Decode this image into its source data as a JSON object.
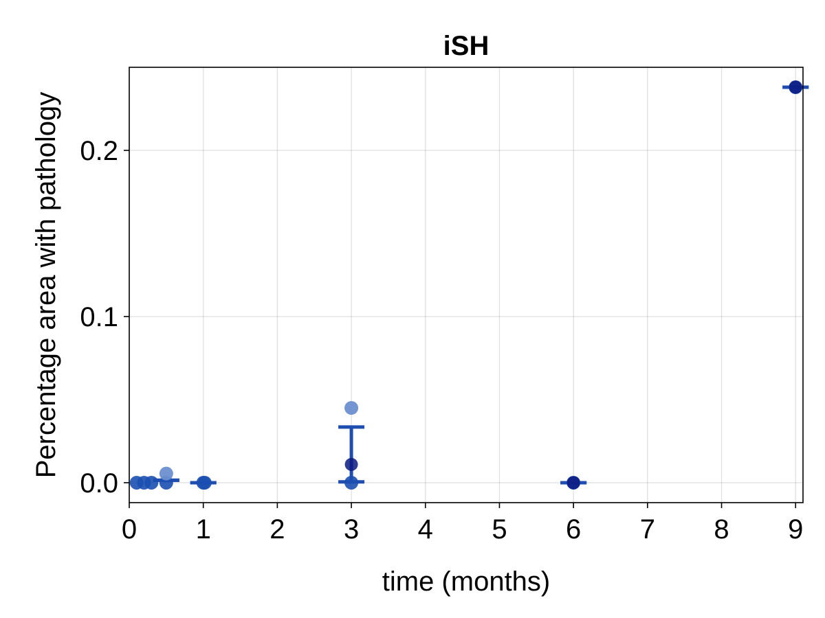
{
  "chart_data": {
    "type": "scatter",
    "title": "iSH",
    "xlabel": "time (months)",
    "ylabel": "Percentage area with pathology",
    "xlim": [
      0,
      9.1
    ],
    "ylim": [
      -0.012,
      0.25
    ],
    "xticks": [
      0,
      1,
      2,
      3,
      4,
      5,
      6,
      7,
      8,
      9
    ],
    "xtick_labels": [
      "0",
      "1",
      "2",
      "3",
      "4",
      "5",
      "6",
      "7",
      "8",
      "9"
    ],
    "yticks": [
      0.0,
      0.1,
      0.2
    ],
    "ytick_labels": [
      "0.0",
      "0.1",
      "0.2"
    ],
    "grid": true,
    "colors": {
      "points": "#1b4fb0",
      "points_light": "#6b8fd0",
      "mean": "#0b1a80",
      "errorbar": "#1f4eb0"
    },
    "points": [
      {
        "x": 0.1,
        "y": 0.0
      },
      {
        "x": 0.2,
        "y": 0.0
      },
      {
        "x": 0.3,
        "y": 0.0
      },
      {
        "x": 0.5,
        "y": 0.0
      },
      {
        "x": 0.5,
        "y": 0.0055
      },
      {
        "x": 1.0,
        "y": 0.0
      },
      {
        "x": 1.02,
        "y": 0.0
      },
      {
        "x": 3.0,
        "y": 0.0
      },
      {
        "x": 3.0,
        "y": 0.045
      },
      {
        "x": 6.0,
        "y": 0.0
      },
      {
        "x": 9.0,
        "y": 0.238
      }
    ],
    "mean_points": [
      {
        "x": 3.0,
        "y": 0.011
      },
      {
        "x": 6.0,
        "y": 0.0
      },
      {
        "x": 9.0,
        "y": 0.238
      }
    ],
    "errorbars": [
      {
        "x": 0.5,
        "low": 0.0015,
        "high": 0.0015
      },
      {
        "x": 1.0,
        "low": 0.0,
        "high": 0.0
      },
      {
        "x": 3.0,
        "low": 0.0005,
        "high": 0.0335
      },
      {
        "x": 6.0,
        "low": 0.0,
        "high": 0.0
      },
      {
        "x": 9.0,
        "low": 0.238,
        "high": 0.238
      }
    ]
  }
}
